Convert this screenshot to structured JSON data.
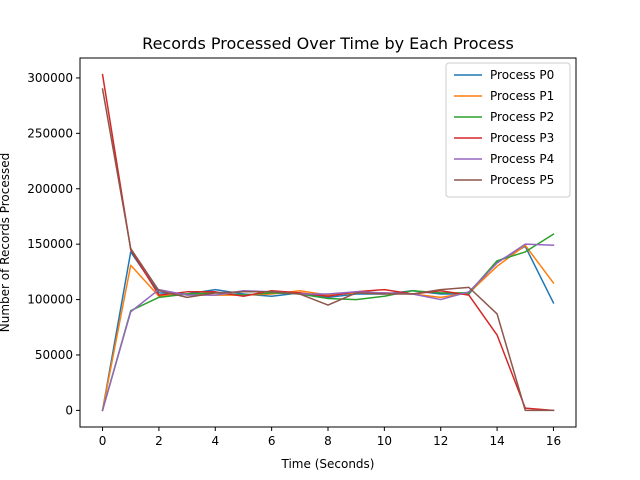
{
  "chart_data": {
    "type": "line",
    "title": "Records Processed Over Time by Each Process",
    "xlabel": "Time (Seconds)",
    "ylabel": "Number of Records Processed",
    "xlim": [
      -0.8,
      16.8
    ],
    "ylim": [
      -15000,
      318000
    ],
    "xticks": [
      0,
      2,
      4,
      6,
      8,
      10,
      12,
      14,
      16
    ],
    "yticks": [
      0,
      50000,
      100000,
      150000,
      200000,
      250000,
      300000
    ],
    "x": [
      0,
      1,
      2,
      3,
      4,
      5,
      6,
      7,
      8,
      9,
      10,
      11,
      12,
      13,
      14,
      15,
      16
    ],
    "grid": false,
    "legend_position": "upper right",
    "series": [
      {
        "name": "Process P0",
        "color": "#1f77b4",
        "values": [
          0,
          143000,
          106000,
          105000,
          109000,
          105000,
          103000,
          106000,
          102000,
          105000,
          105000,
          108000,
          105000,
          105000,
          134000,
          148000,
          97000
        ]
      },
      {
        "name": "Process P1",
        "color": "#ff7f0e",
        "values": [
          0,
          131000,
          103000,
          105000,
          104000,
          104000,
          105000,
          108000,
          104000,
          106000,
          106000,
          105000,
          102000,
          106000,
          130000,
          149000,
          115000
        ]
      },
      {
        "name": "Process P2",
        "color": "#2ca02c",
        "values": [
          0,
          90000,
          102000,
          105000,
          106000,
          104000,
          106000,
          105000,
          101000,
          100000,
          103000,
          108000,
          106000,
          106000,
          135000,
          143000,
          159000
        ]
      },
      {
        "name": "Process P3",
        "color": "#d62728",
        "values": [
          303000,
          145000,
          104000,
          107000,
          107000,
          103000,
          108000,
          106000,
          103000,
          107000,
          109000,
          105000,
          108000,
          104000,
          68000,
          2000,
          0
        ]
      },
      {
        "name": "Process P4",
        "color": "#9467bd",
        "values": [
          0,
          89000,
          109000,
          104000,
          104000,
          108000,
          107000,
          105000,
          105000,
          107000,
          106000,
          105000,
          100000,
          107000,
          133000,
          150000,
          149000
        ]
      },
      {
        "name": "Process P5",
        "color": "#8c564b",
        "values": [
          290000,
          146000,
          108000,
          102000,
          106000,
          107000,
          107000,
          105000,
          95000,
          106000,
          105000,
          105000,
          109000,
          111000,
          87000,
          0,
          0
        ]
      }
    ]
  }
}
